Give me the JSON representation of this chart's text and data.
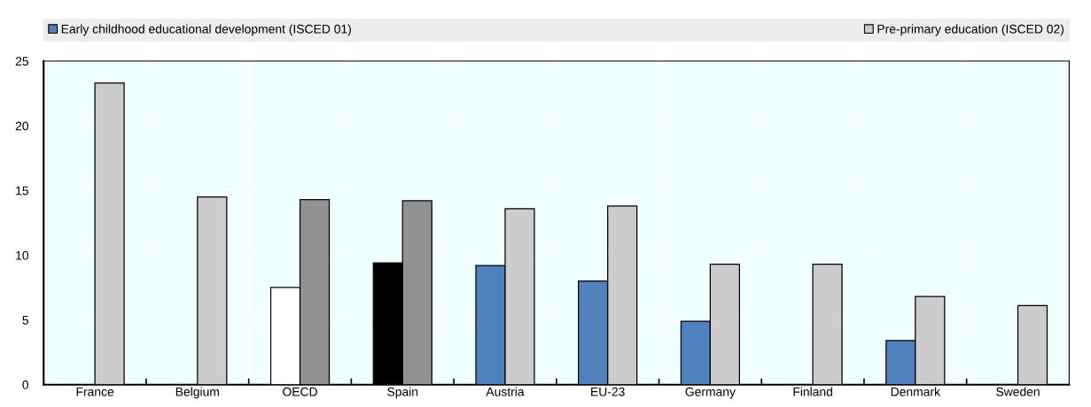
{
  "chart_data": {
    "type": "bar",
    "categories": [
      "France",
      "Belgium",
      "OECD",
      "Spain",
      "Austria",
      "EU-23",
      "Germany",
      "Finland",
      "Denmark",
      "Sweden"
    ],
    "series": [
      {
        "name": "Early childhood educational development (ISCED 01)",
        "color": "#4f81bd",
        "colors": [
          "#4f81bd",
          "#4f81bd",
          "#ffffff",
          "#000000",
          "#4f81bd",
          "#4f81bd",
          "#4f81bd",
          "#4f81bd",
          "#4f81bd",
          "#4f81bd"
        ],
        "values": [
          null,
          null,
          7.5,
          9.4,
          9.2,
          8.0,
          4.9,
          null,
          3.4,
          null
        ]
      },
      {
        "name": "Pre-primary education (ISCED 02)",
        "color": "#cccccc",
        "colors": [
          "#cccccc",
          "#cccccc",
          "#929292",
          "#929292",
          "#cccccc",
          "#cccccc",
          "#cccccc",
          "#cccccc",
          "#cccccc",
          "#cccccc"
        ],
        "values": [
          23.3,
          14.5,
          14.3,
          14.2,
          13.6,
          13.8,
          9.3,
          9.3,
          6.8,
          6.1
        ]
      }
    ],
    "ylim": [
      0,
      25
    ],
    "yticks": [
      0,
      5,
      10,
      15,
      20,
      25
    ],
    "grid": true,
    "legend": "top"
  }
}
